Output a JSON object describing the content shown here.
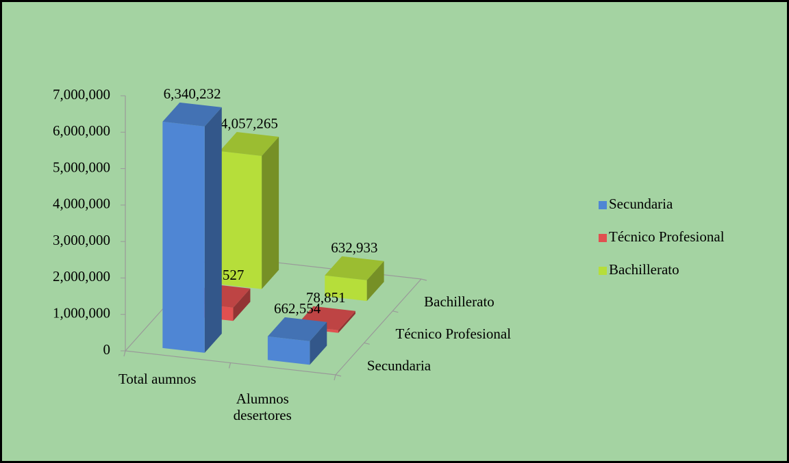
{
  "chart_data": {
    "type": "bar3d",
    "categories": [
      "Total aumnos",
      "Alumnos desertores"
    ],
    "series": [
      {
        "name": "Secundaria",
        "color": "#4f86d4",
        "values": [
          6340232,
          662554
        ],
        "value_labels": [
          "6,340,232",
          "662,554"
        ]
      },
      {
        "name": "Técnico Profesional",
        "color": "#e05050",
        "values": [
          386527,
          78851
        ],
        "value_labels": [
          "386,527",
          "78,851"
        ]
      },
      {
        "name": "Bachillerato",
        "color": "#b6de3a",
        "values": [
          4057265,
          632933
        ],
        "value_labels": [
          "4,057,265",
          "632,933"
        ]
      }
    ],
    "ylim": [
      0,
      7000000
    ],
    "yticks": [
      0,
      {
        "value": 1000000,
        "label": "1,000,000"
      },
      {
        "value": 2000000,
        "label": "2,000,000"
      },
      {
        "value": 3000000,
        "label": "3,000,000"
      },
      {
        "value": 4000000,
        "label": "4,000,000"
      },
      {
        "value": 5000000,
        "label": "5,000,000"
      },
      {
        "value": 6000000,
        "label": "6,000,000"
      },
      {
        "value": 7000000,
        "label": "7,000,000"
      }
    ],
    "legend": "right"
  }
}
